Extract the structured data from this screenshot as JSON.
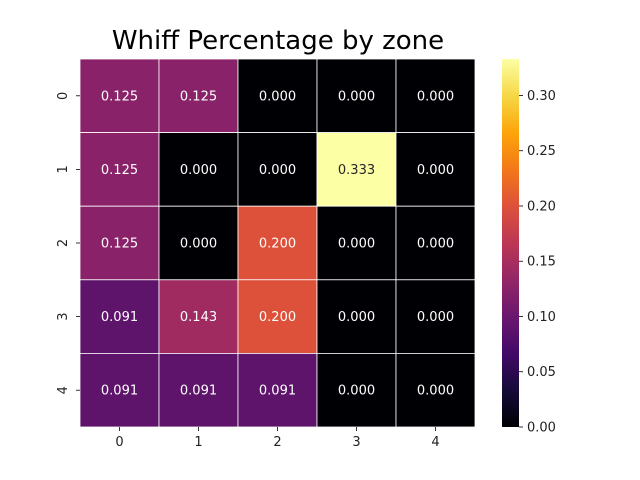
{
  "chart_data": {
    "type": "heatmap",
    "title": "Whiff Percentage by zone",
    "xlabel": "",
    "ylabel": "",
    "x_categories": [
      "0",
      "1",
      "2",
      "3",
      "4"
    ],
    "y_categories": [
      "0",
      "1",
      "2",
      "3",
      "4"
    ],
    "values": [
      [
        0.125,
        0.125,
        0.0,
        0.0,
        0.0
      ],
      [
        0.125,
        0.0,
        0.0,
        0.333,
        0.0
      ],
      [
        0.125,
        0.0,
        0.2,
        0.0,
        0.0
      ],
      [
        0.091,
        0.143,
        0.2,
        0.0,
        0.0
      ],
      [
        0.091,
        0.091,
        0.091,
        0.0,
        0.0
      ]
    ],
    "value_format": "0.000",
    "colormap": "inferno",
    "colorbar": {
      "range": [
        0.0,
        0.333
      ],
      "ticks": [
        0.0,
        0.05,
        0.1,
        0.15,
        0.2,
        0.25,
        0.3
      ],
      "tick_labels": [
        "0.00",
        "0.05",
        "0.10",
        "0.15",
        "0.20",
        "0.25",
        "0.30"
      ]
    },
    "cell_border_color": "#ffffff"
  }
}
